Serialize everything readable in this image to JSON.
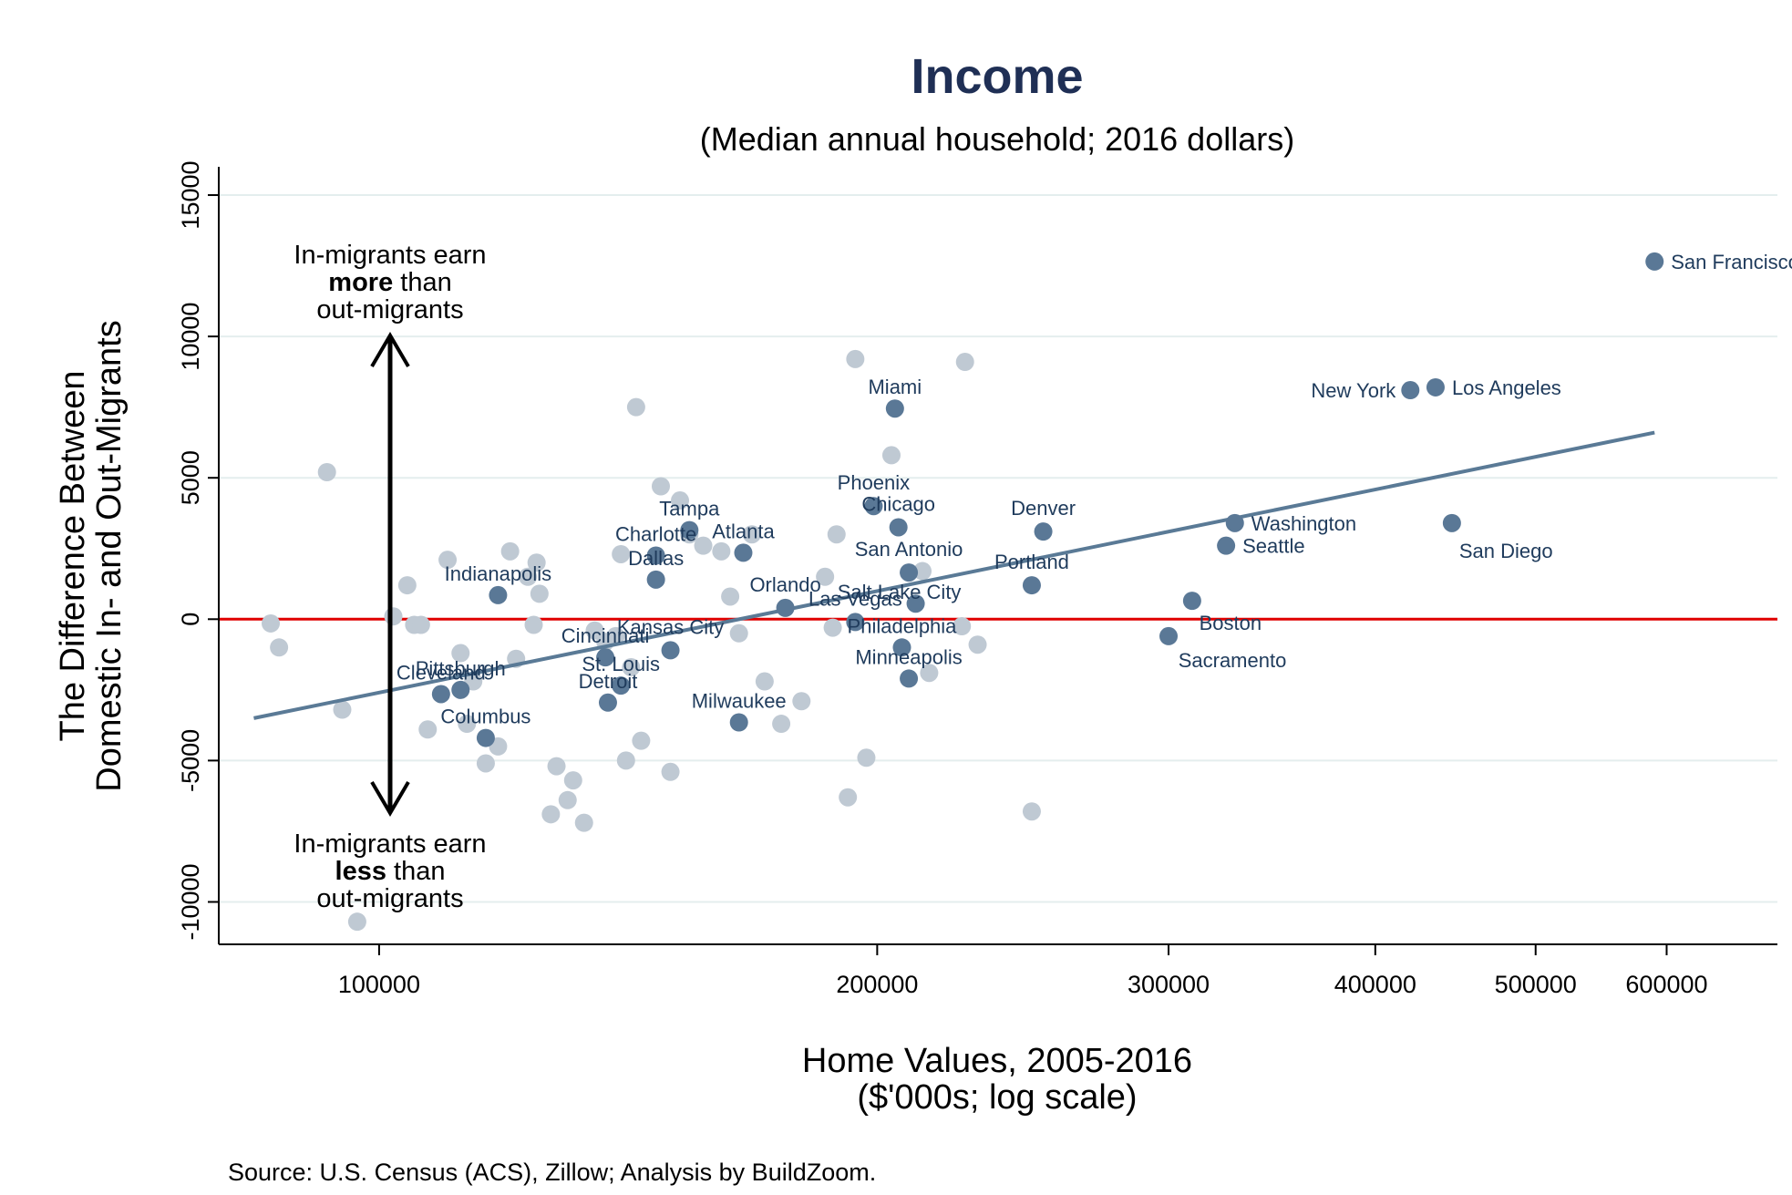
{
  "chart_data": {
    "type": "scatter",
    "title": "Income",
    "subtitle": "(Median annual household; 2016 dollars)",
    "xlabel": "Home Values, 2005-2016",
    "xlabel_sub": "($'000s; log scale)",
    "ylabel": "The Difference Between",
    "ylabel_sub": "Domestic In- and Out-Migrants",
    "source": "Source: U.S. Census (ACS), Zillow; Analysis by BuildZoom.",
    "x_scale": "log",
    "xlim": [
      80000,
      700000
    ],
    "ylim": [
      -11500,
      16000
    ],
    "x_ticks": [
      {
        "value": 100000,
        "label": "100000"
      },
      {
        "value": 200000,
        "label": "200000"
      },
      {
        "value": 300000,
        "label": "300000"
      },
      {
        "value": 400000,
        "label": "400000"
      },
      {
        "value": 500000,
        "label": "500000"
      },
      {
        "value": 600000,
        "label": "600000"
      }
    ],
    "y_ticks": [
      {
        "value": -10000,
        "label": "-10000"
      },
      {
        "value": -5000,
        "label": "-5000"
      },
      {
        "value": 0,
        "label": "0"
      },
      {
        "value": 5000,
        "label": "5000"
      },
      {
        "value": 10000,
        "label": "10000"
      },
      {
        "value": 15000,
        "label": "15000"
      }
    ],
    "grid": true,
    "reference_line": {
      "y": 0,
      "color": "#e00000"
    },
    "fit_line": {
      "x": [
        84000,
        590000
      ],
      "y": [
        -3500,
        6600
      ],
      "color": "#5a7a96"
    },
    "annotation_top": [
      "In-migrants earn",
      "more",
      " than",
      "out-migrants"
    ],
    "annotation_bottom": [
      "In-migrants earn",
      "less",
      " than",
      "out-migrants"
    ],
    "colors": {
      "labeled": "#5a7896",
      "unlabeled": "#bfc9d3",
      "label_text": "#1f3b5c",
      "title": "#1f2f55",
      "grid": "#e4eeee"
    },
    "labeled_points": [
      {
        "name": "San Francisco",
        "x": 590000,
        "y": 12650
      },
      {
        "name": "New York",
        "x": 420000,
        "y": 8100
      },
      {
        "name": "Los Angeles",
        "x": 435000,
        "y": 8200
      },
      {
        "name": "San Diego",
        "x": 445000,
        "y": 3400
      },
      {
        "name": "Miami",
        "x": 205000,
        "y": 7450
      },
      {
        "name": "Phoenix",
        "x": 199000,
        "y": 4000
      },
      {
        "name": "Chicago",
        "x": 206000,
        "y": 3250
      },
      {
        "name": "Denver",
        "x": 252000,
        "y": 3100
      },
      {
        "name": "Washington",
        "x": 329000,
        "y": 3400
      },
      {
        "name": "Seattle",
        "x": 325000,
        "y": 2600
      },
      {
        "name": "San Antonio",
        "x": 209000,
        "y": 1650
      },
      {
        "name": "Portland",
        "x": 248000,
        "y": 1200
      },
      {
        "name": "Salt Lake City",
        "x": 211000,
        "y": 550
      },
      {
        "name": "Las Vegas",
        "x": 194000,
        "y": -100
      },
      {
        "name": "Orlando",
        "x": 176000,
        "y": 400
      },
      {
        "name": "Boston",
        "x": 310000,
        "y": 650
      },
      {
        "name": "Sacramento",
        "x": 300000,
        "y": -600
      },
      {
        "name": "Tampa",
        "x": 154000,
        "y": 3150
      },
      {
        "name": "Atlanta",
        "x": 166000,
        "y": 2350
      },
      {
        "name": "Charlotte",
        "x": 147000,
        "y": 2250
      },
      {
        "name": "Dallas",
        "x": 147000,
        "y": 1400
      },
      {
        "name": "Indianapolis",
        "x": 118000,
        "y": 850
      },
      {
        "name": "Kansas City",
        "x": 150000,
        "y": -1100
      },
      {
        "name": "Cincinnati",
        "x": 137000,
        "y": -1350
      },
      {
        "name": "Philadelphia",
        "x": 207000,
        "y": -1000
      },
      {
        "name": "Minneapolis",
        "x": 209000,
        "y": -2100
      },
      {
        "name": "St. Louis",
        "x": 140000,
        "y": -2350
      },
      {
        "name": "Cleveland",
        "x": 109000,
        "y": -2650
      },
      {
        "name": "Pittsburgh",
        "x": 112000,
        "y": -2500
      },
      {
        "name": "Columbus",
        "x": 116000,
        "y": -4200
      },
      {
        "name": "Milwaukee",
        "x": 165000,
        "y": -3650
      },
      {
        "name": "Detroit",
        "x": 137500,
        "y": -2950
      }
    ],
    "unlabeled_points": [
      [
        86000,
        -150
      ],
      [
        87000,
        -1000
      ],
      [
        93000,
        5200
      ],
      [
        95000,
        -3200
      ],
      [
        97000,
        -10700
      ],
      [
        102000,
        100
      ],
      [
        104000,
        1200
      ],
      [
        105000,
        -200
      ],
      [
        106000,
        -200
      ],
      [
        107000,
        -3900
      ],
      [
        110000,
        2100
      ],
      [
        112000,
        -1200
      ],
      [
        113000,
        -3700
      ],
      [
        114000,
        -2200
      ],
      [
        116000,
        -5100
      ],
      [
        118000,
        -4500
      ],
      [
        120000,
        2400
      ],
      [
        121000,
        -1400
      ],
      [
        123000,
        1500
      ],
      [
        124000,
        -200
      ],
      [
        124500,
        2000
      ],
      [
        125000,
        900
      ],
      [
        127000,
        -6900
      ],
      [
        128000,
        -5200
      ],
      [
        130000,
        -6400
      ],
      [
        131000,
        -5700
      ],
      [
        133000,
        -7200
      ],
      [
        135000,
        -400
      ],
      [
        137000,
        -800
      ],
      [
        139000,
        -600
      ],
      [
        140000,
        2300
      ],
      [
        141000,
        -5000
      ],
      [
        142000,
        -1700
      ],
      [
        143000,
        7500
      ],
      [
        144000,
        -4300
      ],
      [
        148000,
        4700
      ],
      [
        150000,
        -5400
      ],
      [
        152000,
        4200
      ],
      [
        154000,
        3000
      ],
      [
        157000,
        2600
      ],
      [
        161000,
        2400
      ],
      [
        163000,
        800
      ],
      [
        165000,
        -500
      ],
      [
        168000,
        3000
      ],
      [
        171000,
        -2200
      ],
      [
        175000,
        -3700
      ],
      [
        180000,
        -2900
      ],
      [
        186000,
        1500
      ],
      [
        188000,
        -300
      ],
      [
        189000,
        3000
      ],
      [
        192000,
        -6300
      ],
      [
        194000,
        9200
      ],
      [
        197000,
        -4900
      ],
      [
        204000,
        5800
      ],
      [
        213000,
        1700
      ],
      [
        215000,
        -1900
      ],
      [
        225000,
        -250
      ],
      [
        226000,
        9100
      ],
      [
        230000,
        -900
      ],
      [
        248000,
        -6800
      ]
    ]
  }
}
